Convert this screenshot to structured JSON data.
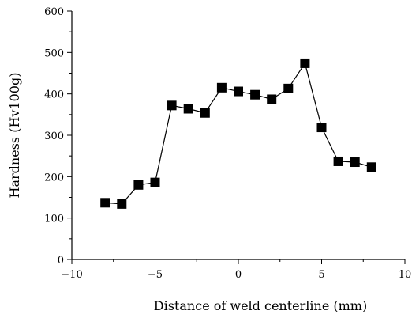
{
  "chart_data": {
    "type": "line",
    "title": "",
    "xlabel": "Distance of weld centerline (mm)",
    "ylabel": "Hardness (Hv100g)",
    "xlim": [
      -10,
      10
    ],
    "ylim": [
      0,
      600
    ],
    "xticks": [
      -10,
      -5,
      0,
      5,
      10
    ],
    "xtick_labels": [
      "−10",
      "−5",
      "0",
      "5",
      "10"
    ],
    "yticks": [
      0,
      100,
      200,
      300,
      400,
      500,
      600
    ],
    "ytick_labels": [
      "0",
      "100",
      "200",
      "300",
      "400",
      "500",
      "600"
    ],
    "grid": false,
    "legend": false,
    "marker": "square",
    "colors": {
      "line": "#000000",
      "marker": "#000000"
    },
    "series": [
      {
        "x": [
          -8,
          -7,
          -6,
          -5,
          -4,
          -3,
          -2,
          -1,
          0,
          1,
          2,
          3,
          4,
          5,
          6,
          7,
          8
        ],
        "y": [
          137,
          134,
          180,
          186,
          372,
          364,
          354,
          415,
          406,
          398,
          387,
          413,
          474,
          319,
          237,
          235,
          223
        ]
      }
    ]
  }
}
